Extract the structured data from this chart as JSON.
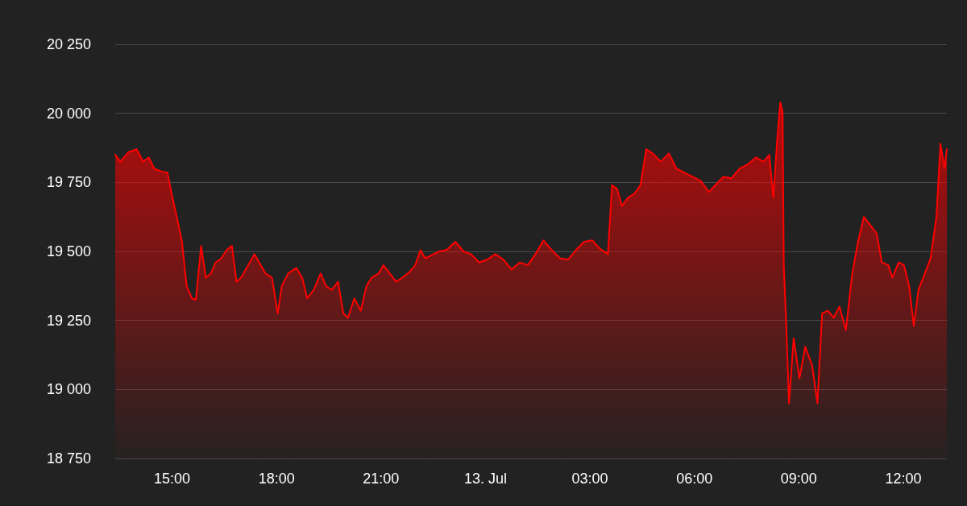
{
  "chart_data": {
    "type": "area",
    "x": [
      "--07-12T13:22",
      "--07-12T13:31",
      "--07-12T13:45",
      "--07-12T13:59",
      "--07-12T14:10",
      "--07-12T14:20",
      "--07-12T14:29",
      "--07-12T14:41",
      "--07-12T14:52",
      "--07-12T14:59",
      "--07-12T15:08",
      "--07-12T15:17",
      "--07-12T15:25",
      "--07-12T15:34",
      "--07-12T15:41",
      "--07-12T15:50",
      "--07-12T15:58",
      "--07-12T16:07",
      "--07-12T16:15",
      "--07-12T16:25",
      "--07-12T16:34",
      "--07-12T16:43",
      "--07-12T16:51",
      "--07-12T16:59",
      "--07-12T17:11",
      "--07-12T17:22",
      "--07-12T17:30",
      "--07-12T17:41",
      "--07-12T17:52",
      "--07-12T18:02",
      "--07-12T18:09",
      "--07-12T18:20",
      "--07-12T18:34",
      "--07-12T18:44",
      "--07-12T18:53",
      "--07-12T19:04",
      "--07-12T19:16",
      "--07-12T19:25",
      "--07-12T19:35",
      "--07-12T19:46",
      "--07-12T19:55",
      "--07-12T20:03",
      "--07-12T20:14",
      "--07-12T20:25",
      "--07-12T20:35",
      "--07-12T20:44",
      "--07-12T20:56",
      "--07-12T21:04",
      "--07-12T21:15",
      "--07-12T21:26",
      "--07-12T21:37",
      "--07-12T21:49",
      "--07-12T21:59",
      "--07-12T22:08",
      "--07-12T22:16",
      "--07-12T22:26",
      "--07-12T22:40",
      "--07-12T22:53",
      "--07-12T23:08",
      "--07-12T23:22",
      "--07-12T23:35",
      "--07-12T23:49",
      "--07-13T00:03",
      "--07-13T00:17",
      "--07-13T00:31",
      "--07-13T00:45",
      "--07-13T00:59",
      "--07-13T01:13",
      "--07-13T01:26",
      "--07-13T01:40",
      "--07-13T01:54",
      "--07-13T02:08",
      "--07-13T02:22",
      "--07-13T02:36",
      "--07-13T02:50",
      "--07-13T03:04",
      "--07-13T03:17",
      "--07-13T03:31",
      "--07-13T03:38",
      "--07-13T03:47",
      "--07-13T03:55",
      "--07-13T04:06",
      "--07-13T04:17",
      "--07-13T04:27",
      "--07-13T04:37",
      "--07-13T04:48",
      "--07-13T05:02",
      "--07-13T05:16",
      "--07-13T05:29",
      "--07-13T05:43",
      "--07-13T05:57",
      "--07-13T06:11",
      "--07-13T06:25",
      "--07-13T06:36",
      "--07-13T06:50",
      "--07-13T07:04",
      "--07-13T07:18",
      "--07-13T07:32",
      "--07-13T07:46",
      "--07-13T07:59",
      "--07-13T08:09",
      "--07-13T08:16",
      "--07-13T08:23",
      "--07-13T08:28",
      "--07-13T08:32",
      "--07-13T08:34",
      "--07-13T08:38",
      "--07-13T08:43",
      "--07-13T08:51",
      "--07-13T09:01",
      "--07-13T09:11",
      "--07-13T09:23",
      "--07-13T09:32",
      "--07-13T09:40",
      "--07-13T09:50",
      "--07-13T10:00",
      "--07-13T10:10",
      "--07-13T10:21",
      "--07-13T10:32",
      "--07-13T10:42",
      "--07-13T10:52",
      "--07-13T11:03",
      "--07-13T11:14",
      "--07-13T11:23",
      "--07-13T11:34",
      "--07-13T11:41",
      "--07-13T11:52",
      "--07-13T12:01",
      "--07-13T12:10",
      "--07-13T12:18",
      "--07-13T12:26",
      "--07-13T12:37",
      "--07-13T12:47",
      "--07-13T12:57",
      "--07-13T13:04",
      "--07-13T13:11",
      "--07-13T13:15"
    ],
    "series": [
      {
        "color": "#ff0000",
        "values": [
          19850,
          19825,
          19860,
          19870,
          19825,
          19840,
          19800,
          19790,
          19785,
          19710,
          19625,
          19535,
          19375,
          19330,
          19325,
          19520,
          19405,
          19420,
          19460,
          19475,
          19505,
          19520,
          19390,
          19405,
          19450,
          19490,
          19460,
          19420,
          19405,
          19275,
          19375,
          19420,
          19440,
          19405,
          19330,
          19360,
          19420,
          19375,
          19360,
          19390,
          19275,
          19260,
          19330,
          19285,
          19375,
          19405,
          19420,
          19450,
          19420,
          19390,
          19405,
          19425,
          19450,
          19505,
          19475,
          19485,
          19500,
          19505,
          19535,
          19500,
          19490,
          19460,
          19470,
          19490,
          19470,
          19435,
          19460,
          19450,
          19490,
          19540,
          19505,
          19475,
          19470,
          19505,
          19535,
          19540,
          19510,
          19490,
          19740,
          19725,
          19665,
          19695,
          19710,
          19740,
          19870,
          19855,
          19825,
          19855,
          19800,
          19785,
          19770,
          19755,
          19715,
          19740,
          19770,
          19765,
          19800,
          19815,
          19840,
          19825,
          19850,
          19695,
          19915,
          20040,
          20005,
          19450,
          19245,
          18950,
          19185,
          19040,
          19155,
          19085,
          18950,
          19275,
          19285,
          19260,
          19300,
          19215,
          19420,
          19535,
          19625,
          19595,
          19565,
          19460,
          19450,
          19405,
          19460,
          19450,
          19375,
          19230,
          19360,
          19420,
          19475,
          19625,
          19890,
          19800,
          19870
        ]
      }
    ],
    "xlim": [
      "--07-12T13:22",
      "--07-13T13:15"
    ],
    "xticks": [
      {
        "value": "--07-12T15:00",
        "label": "15:00"
      },
      {
        "value": "--07-12T18:00",
        "label": "18:00"
      },
      {
        "value": "--07-12T21:00",
        "label": "21:00"
      },
      {
        "value": "--07-13T00:00",
        "label": "13. Jul"
      },
      {
        "value": "--07-13T03:00",
        "label": "03:00"
      },
      {
        "value": "--07-13T06:00",
        "label": "06:00"
      },
      {
        "value": "--07-13T09:00",
        "label": "09:00"
      },
      {
        "value": "--07-13T12:00",
        "label": "12:00"
      }
    ],
    "ylim": [
      18750,
      20250
    ],
    "yticks": [
      {
        "value": 18750,
        "label": "18 750"
      },
      {
        "value": 19000,
        "label": "19 000"
      },
      {
        "value": 19250,
        "label": "19 250"
      },
      {
        "value": 19500,
        "label": "19 500"
      },
      {
        "value": 19750,
        "label": "19 750"
      },
      {
        "value": 20000,
        "label": "20 000"
      },
      {
        "value": 20250,
        "label": "20 250"
      }
    ],
    "grid": "y",
    "marker": "none"
  }
}
